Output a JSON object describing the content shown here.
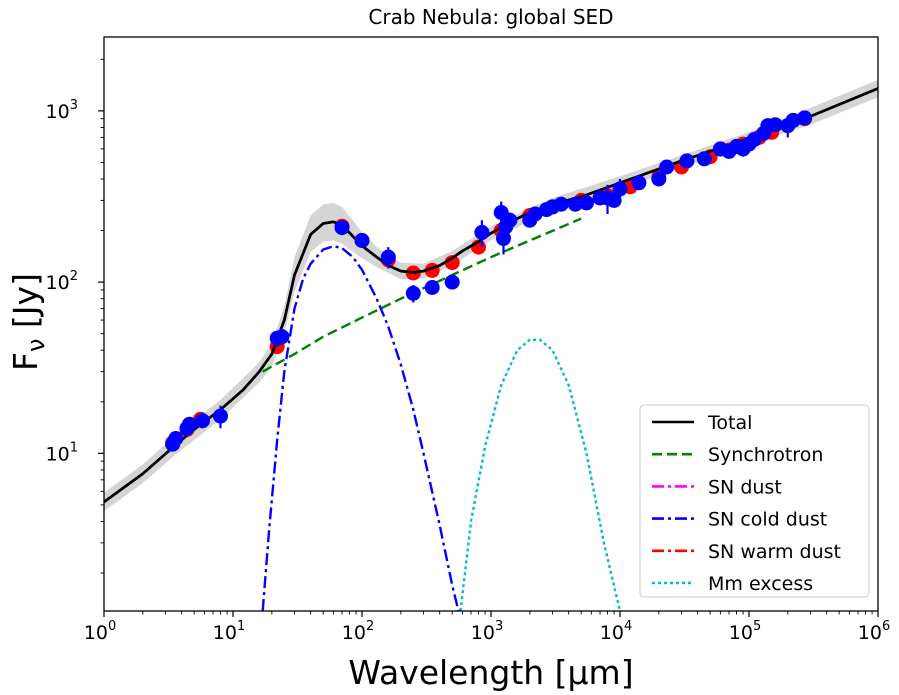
{
  "chart_data": {
    "type": "scatter",
    "title": "Crab Nebula: global SED",
    "xlabel": "Wavelength [μm]",
    "ylabel": "F_ν [Jy]",
    "ylabel_main": "F",
    "ylabel_sub": "ν",
    "ylabel_unit": " [Jy]",
    "xscale": "log",
    "yscale": "log",
    "xlim": [
      1,
      1000000
    ],
    "ylim": [
      1.2,
      2700
    ],
    "x_ticks": [
      {
        "value": 1,
        "base": "10",
        "exp": "0"
      },
      {
        "value": 10,
        "base": "10",
        "exp": "1"
      },
      {
        "value": 100,
        "base": "10",
        "exp": "2"
      },
      {
        "value": 1000,
        "base": "10",
        "exp": "3"
      },
      {
        "value": 10000,
        "base": "10",
        "exp": "4"
      },
      {
        "value": 100000,
        "base": "10",
        "exp": "5"
      },
      {
        "value": 1000000,
        "base": "10",
        "exp": "6"
      }
    ],
    "y_ticks": [
      {
        "value": 10,
        "base": "10",
        "exp": "1"
      },
      {
        "value": 100,
        "base": "10",
        "exp": "2"
      },
      {
        "value": 1000,
        "base": "10",
        "exp": "3"
      }
    ],
    "legend_position": "lower-right",
    "colors": {
      "total": "#000000",
      "synchrotron": "#008000",
      "sn_dust": "#ff00ff",
      "sn_cold_dust": "#0000ff",
      "sn_warm_dust": "#ff0000",
      "mm_excess": "#00bfbf",
      "band": "#d3d3d3",
      "model_points": "#ff0000",
      "observed_points": "#0000ff"
    },
    "legend": [
      {
        "key": "total",
        "label": "Total",
        "style": "solid"
      },
      {
        "key": "synchrotron",
        "label": "Synchrotron",
        "style": "dashed"
      },
      {
        "key": "sn_dust",
        "label": "SN dust",
        "style": "dashdot"
      },
      {
        "key": "sn_cold_dust",
        "label": "SN cold dust",
        "style": "dashdot"
      },
      {
        "key": "sn_warm_dust",
        "label": "SN warm dust",
        "style": "dashdot"
      },
      {
        "key": "mm_excess",
        "label": "Mm excess",
        "style": "dotted"
      }
    ],
    "series": [
      {
        "name": "Total",
        "key": "total",
        "x": [
          1,
          2,
          3.5,
          5,
          8,
          12,
          16,
          20,
          25,
          30,
          40,
          50,
          60,
          70,
          85,
          100,
          130,
          160,
          200,
          250,
          300,
          400,
          500,
          600,
          800,
          1000,
          1300,
          1600,
          2000,
          3000,
          5000,
          10000,
          30000,
          100000,
          300000,
          1000000
        ],
        "y": [
          5.2,
          7.6,
          11.0,
          13.8,
          18.0,
          23.5,
          30,
          38,
          60,
          110,
          190,
          220,
          225,
          215,
          185,
          163,
          140,
          125,
          116,
          114,
          116,
          125,
          138,
          152,
          172,
          193,
          215,
          235,
          255,
          285,
          315,
          380,
          510,
          690,
          930,
          1350
        ]
      },
      {
        "name": "Synchrotron",
        "key": "synchrotron",
        "x": [
          17,
          30,
          50,
          100,
          200,
          500,
          1000,
          2000,
          5000
        ],
        "y": [
          30,
          38,
          48,
          62,
          80,
          110,
          140,
          175,
          235
        ]
      },
      {
        "name": "SN cold dust",
        "key": "sn_cold_dust",
        "x": [
          17,
          19,
          22,
          25,
          30,
          35,
          40,
          50,
          60,
          70,
          85,
          100,
          130,
          160,
          200,
          250,
          300,
          400,
          500,
          560
        ],
        "y": [
          1.2,
          3.5,
          12,
          30,
          70,
          105,
          128,
          155,
          162,
          158,
          140,
          118,
          80,
          55,
          33,
          18,
          10,
          3.8,
          1.7,
          1.2
        ]
      },
      {
        "name": "Mm excess",
        "key": "mm_excess",
        "x": [
          580,
          700,
          900,
          1200,
          1600,
          2000,
          2400,
          3000,
          4000,
          5500,
          7500,
          10000
        ],
        "y": [
          1.2,
          4,
          11,
          25,
          40,
          46,
          46,
          40,
          25,
          10,
          3,
          1.2
        ]
      }
    ],
    "band": {
      "x": [
        1,
        2,
        3.5,
        8,
        16,
        20,
        25,
        30,
        40,
        50,
        60,
        70,
        85,
        100,
        130,
        200,
        300,
        500,
        1000,
        3000,
        10000,
        100000,
        300000,
        1000000
      ],
      "upper": [
        5.9,
        8.6,
        12.6,
        20.5,
        34,
        44,
        72,
        140,
        245,
        285,
        290,
        275,
        230,
        195,
        160,
        130,
        128,
        152,
        212,
        310,
        415,
        750,
        1040,
        1520
      ],
      "lower": [
        4.6,
        6.7,
        9.7,
        15.8,
        26,
        32,
        50,
        88,
        150,
        172,
        175,
        168,
        150,
        138,
        122,
        104,
        105,
        125,
        176,
        262,
        350,
        635,
        830,
        1200
      ]
    },
    "model_points": {
      "x": [
        3.4,
        4.4,
        5.6,
        22,
        23,
        70,
        100,
        160,
        250,
        350,
        500,
        800,
        1200,
        2000,
        3000,
        5000,
        8000,
        12000,
        20000,
        30000,
        50000,
        70000,
        90000,
        120000,
        150000,
        200000,
        270000
      ],
      "y": [
        11.5,
        13.8,
        15.8,
        42,
        47,
        212,
        175,
        135,
        113,
        117,
        130,
        160,
        200,
        245,
        275,
        300,
        320,
        360,
        410,
        470,
        540,
        590,
        640,
        700,
        750,
        820,
        900
      ]
    },
    "observed_points": {
      "x": [
        3.4,
        3.6,
        4.4,
        4.6,
        5.8,
        8,
        22,
        24,
        70,
        100,
        160,
        250,
        350,
        500,
        850,
        1200,
        1250,
        1300,
        1400,
        2000,
        2200,
        2700,
        3000,
        3500,
        4500,
        5500,
        7000,
        8000,
        9000,
        10000,
        14000,
        20000,
        23000,
        33000,
        45000,
        60000,
        70000,
        80000,
        90000,
        100000,
        110000,
        130000,
        140000,
        160000,
        200000,
        220000,
        270000
      ],
      "y": [
        11.3,
        12.2,
        14.0,
        14.8,
        15.5,
        16.5,
        47,
        48,
        208,
        175,
        140,
        86,
        93,
        100,
        195,
        255,
        180,
        210,
        230,
        230,
        250,
        265,
        275,
        285,
        285,
        290,
        310,
        310,
        300,
        350,
        380,
        400,
        470,
        510,
        525,
        600,
        580,
        620,
        600,
        640,
        680,
        740,
        820,
        830,
        820,
        880,
        910
      ],
      "yerr_low": [
        0.7,
        0.7,
        0.8,
        0.8,
        1.5,
        2.5,
        5,
        5,
        20,
        15,
        20,
        10,
        8,
        8,
        35,
        40,
        35,
        30,
        25,
        20,
        20,
        25,
        20,
        20,
        20,
        20,
        25,
        60,
        25,
        50,
        30,
        30,
        40,
        30,
        30,
        60,
        40,
        60,
        60,
        50,
        60,
        60,
        80,
        60,
        120,
        80,
        60
      ],
      "yerr_high": [
        0.7,
        0.7,
        0.8,
        0.8,
        1.5,
        2.5,
        5,
        5,
        20,
        15,
        20,
        10,
        8,
        8,
        35,
        40,
        35,
        30,
        25,
        20,
        20,
        25,
        20,
        20,
        20,
        20,
        25,
        60,
        25,
        50,
        30,
        30,
        40,
        30,
        30,
        60,
        40,
        60,
        60,
        50,
        60,
        60,
        80,
        60,
        120,
        80,
        60
      ]
    }
  }
}
